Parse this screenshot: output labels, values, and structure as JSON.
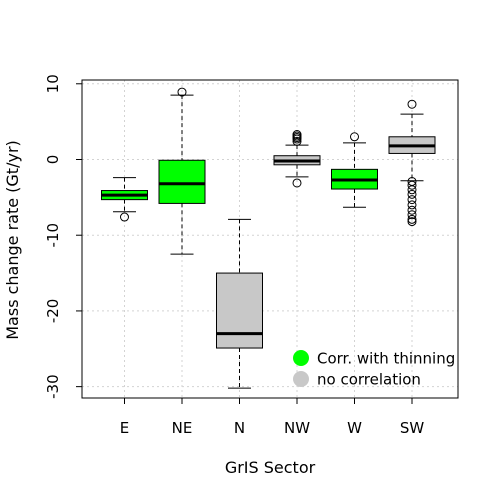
{
  "chart_data": {
    "type": "boxplot",
    "title": "",
    "xlabel": "GrIS Sector",
    "ylabel": "Mass change rate (Gt/yr)",
    "ylim": [
      -31.5,
      10.5
    ],
    "yticks": [
      10,
      0,
      -10,
      -20,
      -30
    ],
    "ytick_labels": [
      "10",
      "0",
      "-10",
      "-20",
      "-30"
    ],
    "grid": true,
    "legend_position": "bottom-right",
    "legend": [
      {
        "label": "Corr. with thinning",
        "color": "#00ff00"
      },
      {
        "label": "no correlation",
        "color": "#c8c8c8"
      }
    ],
    "categories": [
      "E",
      "NE",
      "N",
      "NW",
      "W",
      "SW"
    ],
    "boxes": [
      {
        "category": "E",
        "group": "Corr. with thinning",
        "color": "#00ff00",
        "whisker_low": -6.9,
        "q1": -5.3,
        "median": -4.7,
        "q3": -4.1,
        "whisker_high": -2.4,
        "outliers": [
          -7.6
        ]
      },
      {
        "category": "NE",
        "group": "Corr. with thinning",
        "color": "#00ff00",
        "whisker_low": -12.5,
        "q1": -5.8,
        "median": -3.2,
        "q3": -0.1,
        "whisker_high": 8.5,
        "outliers": [
          8.9
        ]
      },
      {
        "category": "N",
        "group": "no correlation",
        "color": "#c8c8c8",
        "whisker_low": -30.2,
        "q1": -24.9,
        "median": -23.0,
        "q3": -15.0,
        "whisker_high": -7.9,
        "outliers": []
      },
      {
        "category": "NW",
        "group": "no correlation",
        "color": "#c8c8c8",
        "whisker_low": -2.3,
        "q1": -0.7,
        "median": -0.2,
        "q3": 0.5,
        "whisker_high": 1.9,
        "outliers": [
          -3.1,
          2.4,
          2.7,
          2.9,
          3.1,
          3.3
        ]
      },
      {
        "category": "W",
        "group": "Corr. with thinning",
        "color": "#00ff00",
        "whisker_low": -6.3,
        "q1": -3.9,
        "median": -2.7,
        "q3": -1.3,
        "whisker_high": 2.2,
        "outliers": [
          3.0
        ]
      },
      {
        "category": "SW",
        "group": "no correlation",
        "color": "#c8c8c8",
        "whisker_low": -2.8,
        "q1": 0.8,
        "median": 1.8,
        "q3": 3.0,
        "whisker_high": 6.0,
        "outliers": [
          7.3,
          -2.9,
          -3.4,
          -4.0,
          -4.6,
          -5.3,
          -6.0,
          -6.7,
          -7.3,
          -7.9,
          -8.2
        ]
      }
    ]
  }
}
